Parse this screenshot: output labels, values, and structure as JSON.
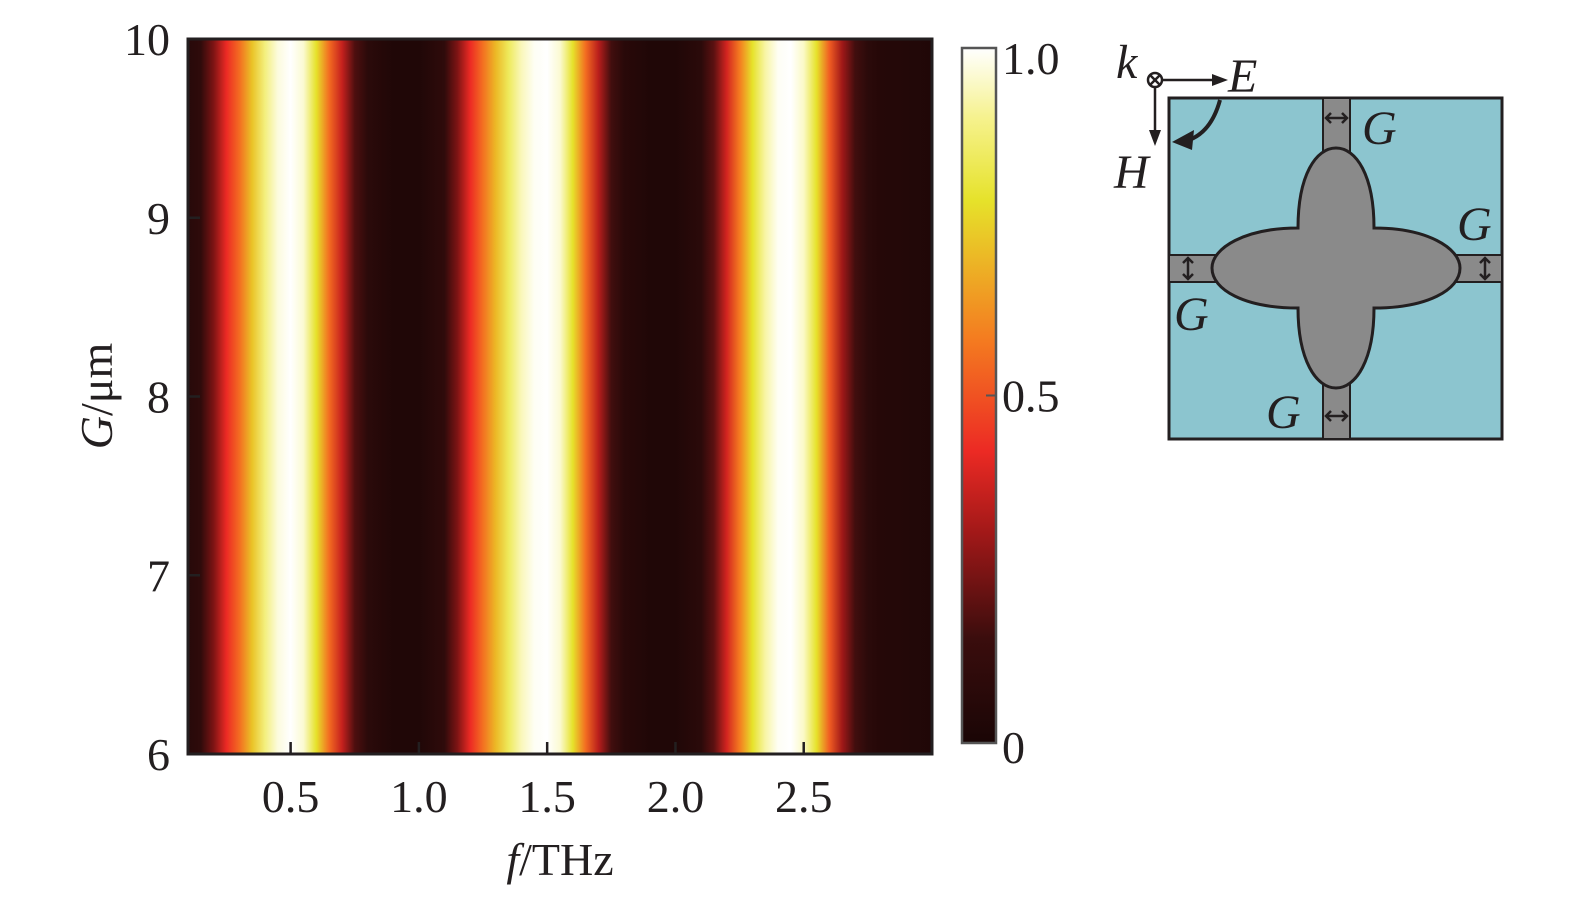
{
  "chart_data": {
    "type": "heatmap",
    "title": "",
    "xlabel": {
      "symbol": "f",
      "unit": "/THz"
    },
    "ylabel": {
      "symbol": "G",
      "unit": "/μm"
    },
    "xlim": [
      0.1,
      3.0
    ],
    "ylim": [
      6,
      10
    ],
    "x_ticks": [
      {
        "value": 0.5,
        "label": "0.5"
      },
      {
        "value": 1.0,
        "label": "1.0"
      },
      {
        "value": 1.5,
        "label": "1.5"
      },
      {
        "value": 2.0,
        "label": "2.0"
      },
      {
        "value": 2.5,
        "label": "2.5"
      }
    ],
    "y_ticks": [
      {
        "value": 6,
        "label": "6"
      },
      {
        "value": 7,
        "label": "7"
      },
      {
        "value": 8,
        "label": "8"
      },
      {
        "value": 9,
        "label": "9"
      },
      {
        "value": 10,
        "label": "10"
      }
    ],
    "colorbar": {
      "range": [
        0,
        1
      ],
      "ticks": [
        {
          "value": 0,
          "label": "0"
        },
        {
          "value": 0.5,
          "label": "0.5"
        },
        {
          "value": 1.0,
          "label": "1.0"
        }
      ],
      "colormap": [
        {
          "v": 0.0,
          "color": "#1a0606"
        },
        {
          "v": 0.15,
          "color": "#3a0d0d"
        },
        {
          "v": 0.3,
          "color": "#a01818"
        },
        {
          "v": 0.42,
          "color": "#ec2a24"
        },
        {
          "v": 0.58,
          "color": "#f47b20"
        },
        {
          "v": 0.78,
          "color": "#e6e22a"
        },
        {
          "v": 0.9,
          "color": "#f6f28e"
        },
        {
          "v": 1.0,
          "color": "#ffffff"
        }
      ]
    },
    "frequency_profile": [
      {
        "f": 0.1,
        "v": 0.06
      },
      {
        "f": 0.15,
        "v": 0.1
      },
      {
        "f": 0.2,
        "v": 0.25
      },
      {
        "f": 0.25,
        "v": 0.42
      },
      {
        "f": 0.3,
        "v": 0.55
      },
      {
        "f": 0.35,
        "v": 0.72
      },
      {
        "f": 0.4,
        "v": 0.88
      },
      {
        "f": 0.45,
        "v": 0.97
      },
      {
        "f": 0.5,
        "v": 1.0
      },
      {
        "f": 0.55,
        "v": 0.96
      },
      {
        "f": 0.6,
        "v": 0.78
      },
      {
        "f": 0.65,
        "v": 0.55
      },
      {
        "f": 0.7,
        "v": 0.36
      },
      {
        "f": 0.75,
        "v": 0.18
      },
      {
        "f": 0.8,
        "v": 0.08
      },
      {
        "f": 0.9,
        "v": 0.03
      },
      {
        "f": 1.0,
        "v": 0.03
      },
      {
        "f": 1.1,
        "v": 0.1
      },
      {
        "f": 1.15,
        "v": 0.25
      },
      {
        "f": 1.2,
        "v": 0.42
      },
      {
        "f": 1.25,
        "v": 0.56
      },
      {
        "f": 1.3,
        "v": 0.7
      },
      {
        "f": 1.35,
        "v": 0.84
      },
      {
        "f": 1.4,
        "v": 0.94
      },
      {
        "f": 1.45,
        "v": 0.99
      },
      {
        "f": 1.5,
        "v": 1.0
      },
      {
        "f": 1.55,
        "v": 0.96
      },
      {
        "f": 1.6,
        "v": 0.78
      },
      {
        "f": 1.65,
        "v": 0.55
      },
      {
        "f": 1.7,
        "v": 0.34
      },
      {
        "f": 1.75,
        "v": 0.16
      },
      {
        "f": 1.8,
        "v": 0.07
      },
      {
        "f": 1.9,
        "v": 0.03
      },
      {
        "f": 2.0,
        "v": 0.03
      },
      {
        "f": 2.1,
        "v": 0.08
      },
      {
        "f": 2.15,
        "v": 0.2
      },
      {
        "f": 2.2,
        "v": 0.38
      },
      {
        "f": 2.25,
        "v": 0.58
      },
      {
        "f": 2.3,
        "v": 0.78
      },
      {
        "f": 2.35,
        "v": 0.92
      },
      {
        "f": 2.4,
        "v": 0.99
      },
      {
        "f": 2.45,
        "v": 1.0
      },
      {
        "f": 2.5,
        "v": 0.95
      },
      {
        "f": 2.55,
        "v": 0.78
      },
      {
        "f": 2.6,
        "v": 0.52
      },
      {
        "f": 2.65,
        "v": 0.3
      },
      {
        "f": 2.7,
        "v": 0.16
      },
      {
        "f": 2.75,
        "v": 0.08
      },
      {
        "f": 2.8,
        "v": 0.05
      },
      {
        "f": 2.9,
        "v": 0.04
      },
      {
        "f": 3.0,
        "v": 0.03
      }
    ]
  },
  "diagram": {
    "labels": {
      "k": "k",
      "E": "E",
      "H": "H",
      "G_top": "G",
      "G_right": "G",
      "G_left": "G",
      "G_bottom": "G"
    },
    "colors": {
      "substrate": "#8cc5cf",
      "metal": "#8a8a8a",
      "outline": "#231f20"
    }
  }
}
